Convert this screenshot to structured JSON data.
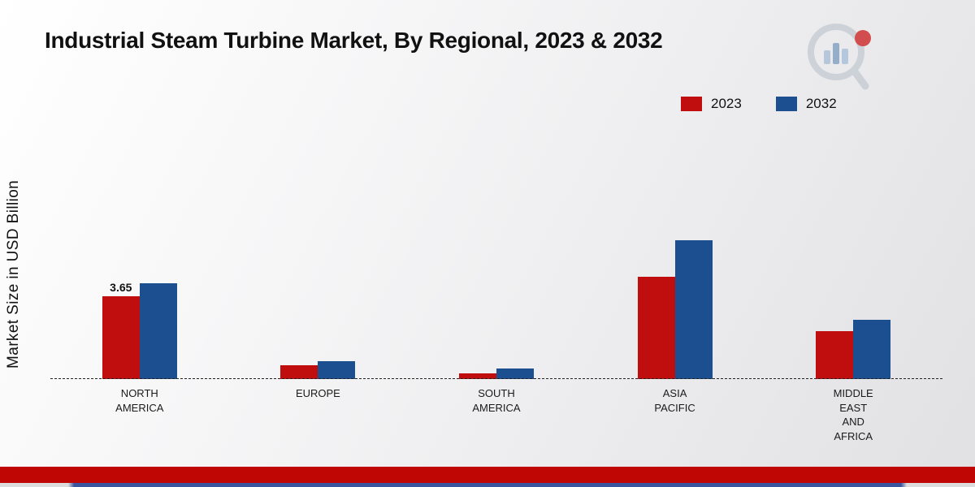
{
  "title": "Industrial Steam Turbine Market, By Regional, 2023 & 2032",
  "ylabel": "Market Size in USD Billion",
  "chart_data": {
    "type": "bar",
    "title": "Industrial Steam Turbine Market, By Regional, 2023 & 2032",
    "ylabel": "Market Size in USD Billion",
    "xlabel": "",
    "unit": "USD Billion",
    "categories": [
      "North America",
      "Europe",
      "South America",
      "Asia Pacific",
      "Middle East and Africa"
    ],
    "category_labels": [
      [
        "NORTH",
        "AMERICA"
      ],
      [
        "EUROPE"
      ],
      [
        "SOUTH",
        "AMERICA"
      ],
      [
        "ASIA",
        "PACIFIC"
      ],
      [
        "MIDDLE",
        "EAST",
        "AND",
        "AFRICA"
      ]
    ],
    "series": [
      {
        "name": "2023",
        "color": "#c00d0d",
        "values": [
          3.65,
          0.6,
          0.25,
          4.5,
          2.1
        ]
      },
      {
        "name": "2032",
        "color": "#1b4f8f",
        "values": [
          4.2,
          0.8,
          0.45,
          6.1,
          2.6
        ]
      }
    ],
    "data_labels": [
      {
        "series": "2023",
        "category": "North America",
        "text": "3.65"
      }
    ],
    "ylim": [
      0,
      6.5
    ],
    "grid": false,
    "y_ticks_visible": false,
    "baseline_style": "dashed",
    "legend_position": "top-right"
  },
  "branding": {
    "logo_name": "market-research-future-logo",
    "footer_bar_color": "#c00505",
    "footer_strip_color": "#3b549e"
  }
}
